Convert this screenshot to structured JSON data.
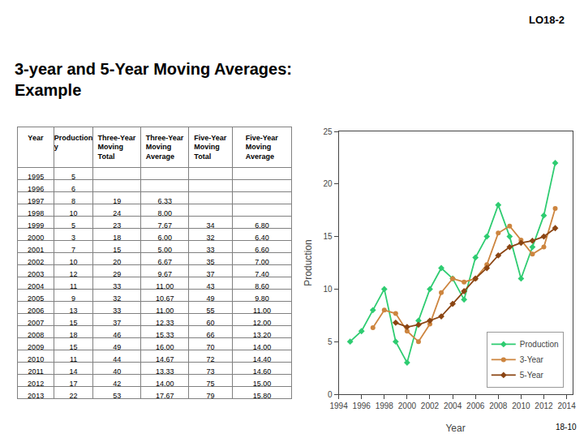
{
  "title": "3-year and 5-Year Moving Averages:\nExample",
  "annotations": [
    {
      "text": "LO18-2"
    },
    {
      "text": "18-10"
    }
  ],
  "chart_data": [
    {
      "type": "table",
      "xlabel": "Year",
      "categories": [
        1995,
        1996,
        1997,
        1998,
        1999,
        2000,
        2001,
        2002,
        2003,
        2004,
        2005,
        2006,
        2007,
        2008,
        2009,
        2010,
        2011,
        2012,
        2013
      ],
      "series": [
        {
          "name": "Production\ny",
          "values": [
            5,
            6,
            8,
            10,
            5,
            3,
            7,
            10,
            12,
            11,
            9,
            13,
            15,
            18,
            15,
            11,
            14,
            17,
            22
          ]
        },
        {
          "name": "Three-Year\nMoving\nTotal",
          "values": [
            null,
            null,
            19,
            24,
            23,
            18,
            15,
            20,
            29,
            33,
            32,
            33,
            37,
            46,
            49,
            44,
            40,
            42,
            53
          ]
        },
        {
          "name": "Three-Year\nMoving\nAverage",
          "values": [
            null,
            null,
            6.33,
            8.0,
            7.67,
            6.0,
            5.0,
            6.67,
            9.67,
            11.0,
            10.67,
            11.0,
            12.33,
            15.33,
            16.0,
            14.67,
            13.33,
            14.0,
            17.67
          ],
          "value_labels": [
            null,
            null,
            "6.33",
            "8.00",
            "7.67",
            "6.00",
            "5.00",
            "6.67",
            "9.67",
            "11.00",
            "10.67",
            "11.00",
            "12.33",
            "15.33",
            "16.00",
            "14.67",
            "13.33",
            "14.00",
            "17.67"
          ]
        },
        {
          "name": "Five-Year\nMoving\nTotal",
          "values": [
            null,
            null,
            null,
            null,
            34,
            32,
            33,
            35,
            37,
            43,
            49,
            55,
            60,
            66,
            70,
            72,
            73,
            75,
            79
          ]
        },
        {
          "name": "Five-Year\nMoving\nAverage",
          "values": [
            null,
            null,
            null,
            null,
            6.8,
            6.4,
            6.6,
            7.0,
            7.4,
            8.6,
            9.8,
            11.0,
            12.0,
            13.2,
            14.0,
            14.4,
            14.6,
            15.0,
            15.8
          ],
          "value_labels": [
            null,
            null,
            null,
            null,
            "6.80",
            "6.40",
            "6.60",
            "7.00",
            "7.40",
            "8.60",
            "9.80",
            "11.00",
            "12.00",
            "13.20",
            "14.00",
            "14.40",
            "14.60",
            "15.00",
            "15.80"
          ]
        }
      ]
    },
    {
      "type": "line",
      "x": [
        1995,
        1996,
        1997,
        1998,
        1999,
        2000,
        2001,
        2002,
        2003,
        2004,
        2005,
        2006,
        2007,
        2008,
        2009,
        2010,
        2011,
        2012,
        2013
      ],
      "xlabel": "Year",
      "ylabel": "Production",
      "xlim": [
        1994,
        2014.5
      ],
      "xticks": [
        1994,
        1996,
        1998,
        2000,
        2002,
        2004,
        2006,
        2008,
        2010,
        2012,
        2014
      ],
      "ylim": [
        0,
        25
      ],
      "yticks": [
        0,
        5,
        10,
        15,
        20,
        25
      ],
      "grid": false,
      "legend": "lower right",
      "series": [
        {
          "name": "Production",
          "color": "#2ecc71",
          "marker": "diamond",
          "values": [
            5,
            6,
            8,
            10,
            5,
            3,
            7,
            10,
            12,
            11,
            9,
            13,
            15,
            18,
            15,
            11,
            14,
            17,
            22
          ]
        },
        {
          "name": "3-Year",
          "color": "#cd853f",
          "marker": "circle",
          "values": [
            null,
            null,
            6.33,
            8.0,
            7.67,
            6.0,
            5.0,
            6.67,
            9.67,
            11.0,
            10.67,
            11.0,
            12.33,
            15.33,
            16.0,
            14.67,
            13.33,
            14.0,
            17.67
          ]
        },
        {
          "name": "5-Year",
          "color": "#8b4513",
          "marker": "diamond",
          "values": [
            null,
            null,
            null,
            null,
            6.8,
            6.4,
            6.6,
            7.0,
            7.4,
            8.6,
            9.8,
            11.0,
            12.0,
            13.2,
            14.0,
            14.4,
            14.6,
            15.0,
            15.8
          ]
        }
      ]
    }
  ]
}
